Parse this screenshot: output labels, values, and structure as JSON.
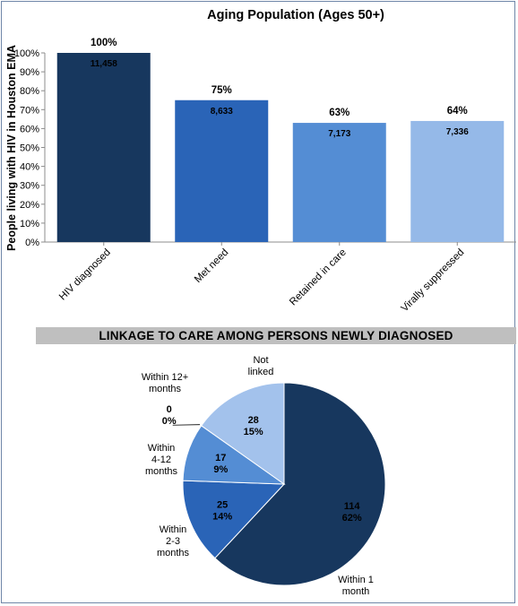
{
  "chart_data": [
    {
      "type": "bar",
      "title": "Aging Population (Ages 50+)",
      "ylabel": "People living with HIV in Houston EMA",
      "xlabel": "",
      "ylim": [
        0,
        100
      ],
      "yticks": [
        "0%",
        "10%",
        "20%",
        "30%",
        "40%",
        "50%",
        "60%",
        "70%",
        "80%",
        "90%",
        "100%"
      ],
      "categories": [
        "HIV diagnosed",
        "Met need",
        "Retained in care",
        "Virally suppressed"
      ],
      "values": [
        100,
        75,
        63,
        64
      ],
      "pct_labels": [
        "100%",
        "75%",
        "63%",
        "64%"
      ],
      "count_labels": [
        "11,458",
        "8,633",
        "7,173",
        "7,336"
      ],
      "colors": [
        "#17375e",
        "#2a64b7",
        "#548dd4",
        "#95b9e8"
      ],
      "grid": false,
      "legend": "none"
    },
    {
      "type": "pie",
      "title": "LINKAGE TO CARE AMONG PERSONS NEWLY DIAGNOSED",
      "slices": [
        {
          "label_lines": [
            "Within 1",
            "month"
          ],
          "value": 114,
          "percent": "62%",
          "color": "#17375e"
        },
        {
          "label_lines": [
            "Within",
            "2-3",
            "months"
          ],
          "value": 25,
          "percent": "14%",
          "color": "#2a64b7"
        },
        {
          "label_lines": [
            "Within",
            "4-12",
            "months"
          ],
          "value": 17,
          "percent": "9%",
          "color": "#548dd4"
        },
        {
          "label_lines": [
            "Within 12+",
            "months"
          ],
          "value": 0,
          "percent": "0%",
          "color": "#4a7cc4"
        },
        {
          "label_lines": [
            "Not",
            "linked"
          ],
          "value": 28,
          "percent": "15%",
          "color": "#a3c2ec"
        }
      ]
    }
  ]
}
